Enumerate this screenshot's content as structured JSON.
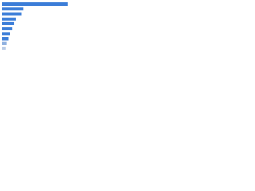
{
  "chart_data": {
    "type": "bar",
    "orientation": "horizontal",
    "categories": [
      null,
      null,
      null,
      null,
      null,
      null,
      null,
      null,
      null,
      null
    ],
    "values": [
      87,
      28,
      25,
      18,
      16,
      13,
      10,
      8,
      6,
      4
    ],
    "colors": [
      "#3b7dd8",
      "#3b7dd8",
      "#3b7dd8",
      "#3b7dd8",
      "#3b7dd8",
      "#3b7dd8",
      "#3b7dd8",
      "#3b7dd8",
      "#8fb0df",
      "#b9cbe6"
    ],
    "xlim": [
      0,
      100
    ]
  }
}
